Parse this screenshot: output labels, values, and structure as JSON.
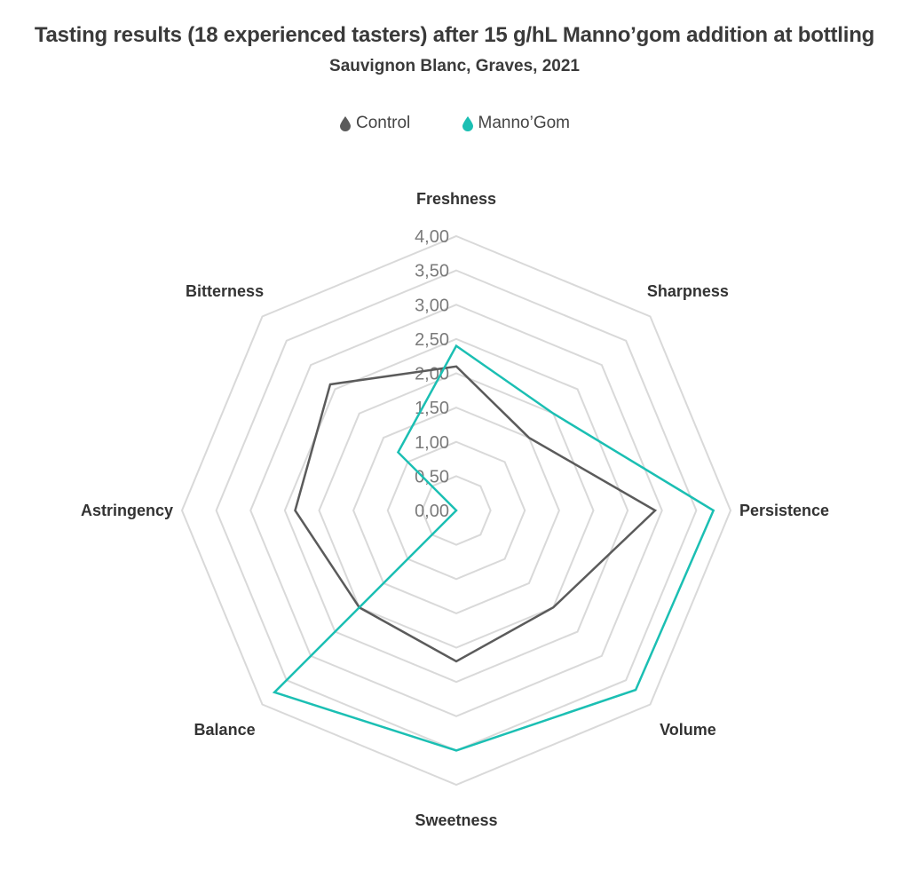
{
  "chart_data": {
    "type": "radar",
    "title": "Tasting results (18 experienced tasters) after 15 g/hL Manno’gom addition at bottling",
    "subtitle": "Sauvignon Blanc, Graves, 2021",
    "axes": [
      "Freshness",
      "Sharpness",
      "Persistence",
      "Volume",
      "Sweetness",
      "Balance",
      "Astringency",
      "Bitterness"
    ],
    "range": [
      0,
      4
    ],
    "ticks": [
      0,
      0.5,
      1,
      1.5,
      2,
      2.5,
      3,
      3.5,
      4
    ],
    "tick_labels": [
      "0,00",
      "0,50",
      "1,00",
      "1,50",
      "2,00",
      "2,50",
      "3,00",
      "3,50",
      "4,00"
    ],
    "grid": true,
    "legend_position": "top",
    "series": [
      {
        "name": "Control",
        "color": "#5b5b5b",
        "values": [
          2.1,
          1.5,
          2.9,
          2.0,
          2.2,
          2.0,
          2.35,
          2.6
        ]
      },
      {
        "name": "Manno’Gom",
        "color": "#1bbfb3",
        "values": [
          2.4,
          2.0,
          3.75,
          3.7,
          3.5,
          3.75,
          0,
          1.2
        ]
      }
    ]
  }
}
